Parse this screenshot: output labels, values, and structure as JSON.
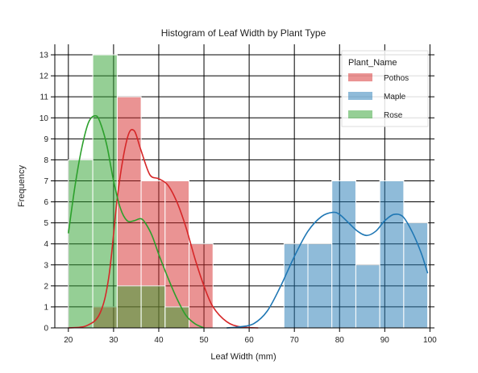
{
  "chart_data": {
    "type": "bar",
    "title": "Histogram of Leaf Width by Plant Type",
    "xlabel": "Leaf Width (mm)",
    "ylabel": "Frequency",
    "xlim": [
      17,
      101
    ],
    "ylim": [
      0,
      13.5
    ],
    "xticks": [
      20,
      30,
      40,
      50,
      60,
      70,
      80,
      90,
      100
    ],
    "yticks": [
      0,
      1,
      2,
      3,
      4,
      5,
      6,
      7,
      8,
      9,
      10,
      11,
      12,
      13
    ],
    "grid": true,
    "legend": {
      "title": "Plant_Name",
      "position": "top-right"
    },
    "series": [
      {
        "name": "Pothos",
        "color": "#d62728",
        "bins": [
          {
            "x0": 25.5,
            "x1": 30.8,
            "count": 1
          },
          {
            "x0": 30.8,
            "x1": 36.1,
            "count": 11
          },
          {
            "x0": 36.1,
            "x1": 41.4,
            "count": 7
          },
          {
            "x0": 41.4,
            "x1": 46.7,
            "count": 7
          },
          {
            "x0": 46.7,
            "x1": 52.0,
            "count": 4
          }
        ],
        "kde": [
          [
            20,
            0
          ],
          [
            24,
            0.1
          ],
          [
            27,
            0.7
          ],
          [
            29,
            2.5
          ],
          [
            31,
            6.5
          ],
          [
            33,
            9
          ],
          [
            34.5,
            9.4
          ],
          [
            36,
            8.5
          ],
          [
            38,
            7.3
          ],
          [
            40,
            7.1
          ],
          [
            42,
            6.8
          ],
          [
            44,
            6
          ],
          [
            46,
            4.8
          ],
          [
            48,
            3.3
          ],
          [
            50,
            2
          ],
          [
            52,
            1
          ],
          [
            55,
            0.3
          ],
          [
            58,
            0.05
          ],
          [
            62,
            0
          ]
        ]
      },
      {
        "name": "Maple",
        "color": "#1f77b4",
        "bins": [
          {
            "x0": 67.7,
            "x1": 73.0,
            "count": 4
          },
          {
            "x0": 73.0,
            "x1": 78.3,
            "count": 4
          },
          {
            "x0": 78.3,
            "x1": 83.6,
            "count": 7
          },
          {
            "x0": 83.6,
            "x1": 88.9,
            "count": 3
          },
          {
            "x0": 88.9,
            "x1": 94.2,
            "count": 7
          },
          {
            "x0": 94.2,
            "x1": 99.5,
            "count": 5
          }
        ],
        "kde": [
          [
            55,
            0
          ],
          [
            58,
            0.05
          ],
          [
            61,
            0.2
          ],
          [
            64,
            0.8
          ],
          [
            67,
            2
          ],
          [
            70,
            3.4
          ],
          [
            73,
            4.6
          ],
          [
            76,
            5.3
          ],
          [
            78.5,
            5.5
          ],
          [
            80,
            5.4
          ],
          [
            82,
            5
          ],
          [
            84,
            4.6
          ],
          [
            86,
            4.4
          ],
          [
            88,
            4.6
          ],
          [
            90,
            5.1
          ],
          [
            92,
            5.4
          ],
          [
            94,
            5.3
          ],
          [
            96,
            4.6
          ],
          [
            98,
            3.6
          ],
          [
            99.5,
            2.6
          ]
        ]
      },
      {
        "name": "Rose",
        "color": "#2ca02c",
        "bins": [
          {
            "x0": 20.0,
            "x1": 25.4,
            "count": 8
          },
          {
            "x0": 25.4,
            "x1": 30.8,
            "count": 13
          },
          {
            "x0": 30.8,
            "x1": 36.1,
            "count": 2
          },
          {
            "x0": 36.1,
            "x1": 41.4,
            "count": 2
          },
          {
            "x0": 41.4,
            "x1": 46.7,
            "count": 1
          }
        ],
        "kde": [
          [
            20,
            4.5
          ],
          [
            21.5,
            6.8
          ],
          [
            23,
            8.6
          ],
          [
            24.5,
            9.8
          ],
          [
            26,
            10.1
          ],
          [
            27,
            9.8
          ],
          [
            28.5,
            8.7
          ],
          [
            30,
            7
          ],
          [
            31.5,
            5.7
          ],
          [
            33,
            5.1
          ],
          [
            34.5,
            5.1
          ],
          [
            36,
            5.2
          ],
          [
            37,
            5
          ],
          [
            38.5,
            4.4
          ],
          [
            40,
            3.5
          ],
          [
            42,
            2.4
          ],
          [
            44,
            1.4
          ],
          [
            46,
            0.6
          ],
          [
            48,
            0.2
          ],
          [
            50,
            0
          ]
        ]
      }
    ]
  }
}
